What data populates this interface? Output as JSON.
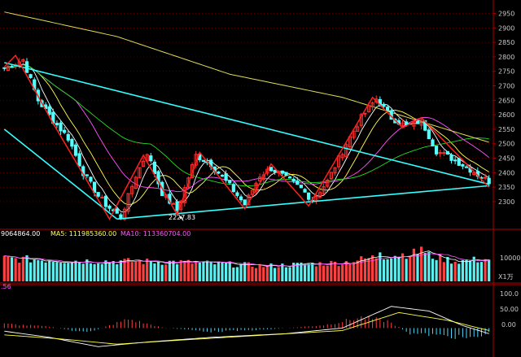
{
  "colors": {
    "background": "#000000",
    "up": "#ff3030",
    "down": "#54ffff",
    "grid": "#7a0000",
    "axis_text": "#c8c8c8",
    "ma5": "#ffffff",
    "ma10": "#ffff55",
    "ma20": "#ff55ff",
    "ma60": "#22dd22",
    "ma250": "#dddd55",
    "trend": "#33ffff",
    "zigzag": "#ff2020",
    "dif": "#ffffff",
    "dea": "#ffff44",
    "macd_pos": "#ff4040",
    "macd_neg": "#4bd8ff"
  },
  "price_axis": {
    "ticks": [
      "2950",
      "2900",
      "2850",
      "2800",
      "2750",
      "2700",
      "2650",
      "2600",
      "2550",
      "2500",
      "2450",
      "2400",
      "2350",
      "2300"
    ]
  },
  "annotations": {
    "low_label": "2227.83"
  },
  "volume_panel": {
    "legend_vol": "9064864.00",
    "legend_ma5": "MA5: 111985360.00",
    "legend_ma10": "MA10: 113360704.00",
    "axis_tick": "10000",
    "unit_label": "X1万"
  },
  "macd_panel": {
    "legend": ".56",
    "axis_ticks": [
      "100.0",
      "50.00",
      "0.00"
    ]
  },
  "chart_data": {
    "type": "candlestick",
    "y_range": [
      2210,
      2985
    ],
    "y_ticks": [
      2950,
      2900,
      2850,
      2800,
      2750,
      2700,
      2650,
      2600,
      2550,
      2500,
      2450,
      2400,
      2350,
      2300
    ],
    "close_anchors": [
      [
        0,
        2760
      ],
      [
        5,
        2790
      ],
      [
        9,
        2650
      ],
      [
        13,
        2580
      ],
      [
        17,
        2520
      ],
      [
        21,
        2400
      ],
      [
        25,
        2320
      ],
      [
        27,
        2290
      ],
      [
        31,
        2245
      ],
      [
        35,
        2390
      ],
      [
        38,
        2470
      ],
      [
        42,
        2330
      ],
      [
        46,
        2270
      ],
      [
        51,
        2460
      ],
      [
        55,
        2430
      ],
      [
        60,
        2355
      ],
      [
        64,
        2290
      ],
      [
        68,
        2390
      ],
      [
        71,
        2415
      ],
      [
        74,
        2390
      ],
      [
        79,
        2345
      ],
      [
        82,
        2305
      ],
      [
        86,
        2370
      ],
      [
        91,
        2500
      ],
      [
        95,
        2590
      ],
      [
        99,
        2655
      ],
      [
        103,
        2590
      ],
      [
        107,
        2560
      ],
      [
        111,
        2580
      ],
      [
        115,
        2475
      ],
      [
        119,
        2450
      ],
      [
        123,
        2420
      ],
      [
        127,
        2385
      ],
      [
        129,
        2370
      ]
    ],
    "trendlines": [
      [
        [
          0,
          2780
        ],
        [
          129,
          2360
        ]
      ],
      [
        [
          30,
          2240
        ],
        [
          129,
          2355
        ]
      ],
      [
        [
          0,
          2550
        ],
        [
          30,
          2240
        ]
      ]
    ],
    "zigzag": [
      [
        0,
        2765
      ],
      [
        3,
        2805
      ],
      [
        13,
        2570
      ],
      [
        28,
        2240
      ],
      [
        37,
        2460
      ],
      [
        46,
        2255
      ],
      [
        52,
        2470
      ],
      [
        64,
        2275
      ],
      [
        71,
        2430
      ],
      [
        81,
        2285
      ],
      [
        98,
        2660
      ],
      [
        106,
        2555
      ],
      [
        111,
        2590
      ],
      [
        129,
        2350
      ]
    ],
    "volume": {
      "y_range": [
        0,
        20000
      ],
      "anchors": [
        [
          0,
          10400
        ],
        [
          20,
          9400
        ],
        [
          45,
          8900
        ],
        [
          70,
          7000
        ],
        [
          90,
          8600
        ],
        [
          100,
          11400
        ],
        [
          110,
          13000
        ],
        [
          120,
          9200
        ],
        [
          129,
          10200
        ]
      ],
      "spike": [
        [
          100,
          13200
        ],
        [
          111,
          15800
        ]
      ]
    },
    "macd": {
      "y_range": [
        -75,
        135
      ],
      "dif_anchors": [
        [
          0,
          -10
        ],
        [
          12,
          -30
        ],
        [
          25,
          -60
        ],
        [
          38,
          -45
        ],
        [
          55,
          -30
        ],
        [
          75,
          -18
        ],
        [
          90,
          0
        ],
        [
          103,
          70
        ],
        [
          113,
          55
        ],
        [
          122,
          8
        ],
        [
          129,
          -18
        ]
      ],
      "dea_anchors": [
        [
          0,
          -22
        ],
        [
          15,
          -35
        ],
        [
          30,
          -52
        ],
        [
          48,
          -38
        ],
        [
          70,
          -22
        ],
        [
          90,
          -8
        ],
        [
          105,
          50
        ],
        [
          118,
          25
        ],
        [
          129,
          -8
        ]
      ],
      "bars_anchors": [
        [
          0,
          14
        ],
        [
          12,
          5
        ],
        [
          22,
          -16
        ],
        [
          33,
          30
        ],
        [
          42,
          2
        ],
        [
          55,
          -12
        ],
        [
          70,
          -5
        ],
        [
          85,
          10
        ],
        [
          95,
          36
        ],
        [
          102,
          24
        ],
        [
          108,
          -18
        ],
        [
          117,
          -26
        ],
        [
          125,
          -36
        ],
        [
          129,
          -16
        ]
      ]
    }
  }
}
